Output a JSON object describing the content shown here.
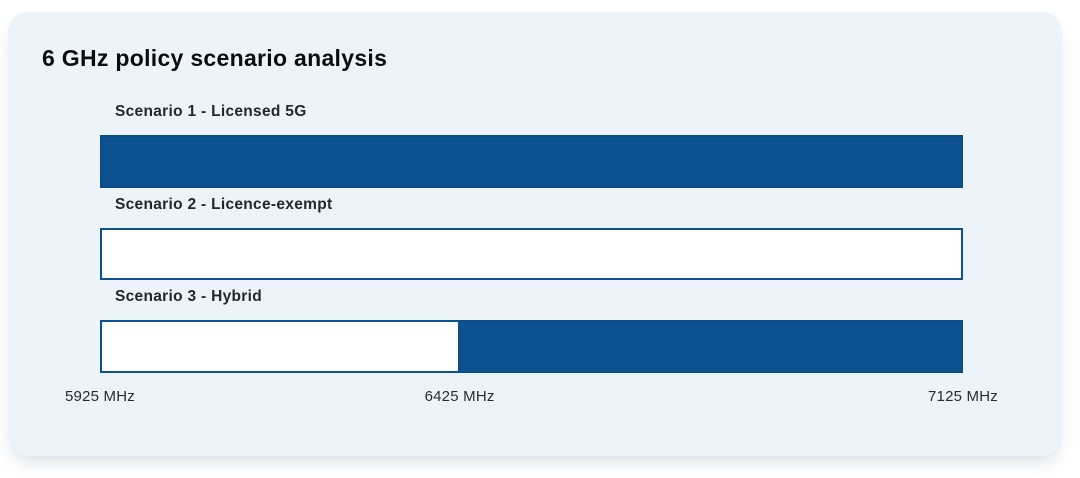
{
  "card": {
    "title": "6 GHz policy scenario analysis"
  },
  "chart_data": {
    "type": "bar",
    "orientation": "horizontal",
    "title": "6 GHz policy scenario analysis",
    "x_axis": {
      "unit": "MHz",
      "min": 5925,
      "max": 7125,
      "ticks": [
        {
          "value": 5925,
          "label": "5925 MHz"
        },
        {
          "value": 6425,
          "label": "6425 MHz"
        },
        {
          "value": 7125,
          "label": "7125 MHz"
        }
      ]
    },
    "series": [
      {
        "label": "Scenario 1 - Licensed 5G",
        "segments": [
          {
            "from": 5925,
            "to": 7125,
            "type": "licensed"
          }
        ]
      },
      {
        "label": "Scenario 2 - Licence-exempt",
        "segments": [
          {
            "from": 5925,
            "to": 7125,
            "type": "licence_exempt"
          }
        ]
      },
      {
        "label": "Scenario 3 - Hybrid",
        "segments": [
          {
            "from": 5925,
            "to": 6425,
            "type": "licence_exempt"
          },
          {
            "from": 6425,
            "to": 7125,
            "type": "licensed"
          }
        ]
      }
    ],
    "colors": {
      "licensed_fill": "#0D5290",
      "licence_exempt_fill": "#FFFFFF",
      "outline": "#0D5290",
      "card_background": "#EDF4F9",
      "title_text": "#0C0D0F",
      "label_text": "#22262E"
    },
    "legend": "none",
    "grid": "off"
  }
}
